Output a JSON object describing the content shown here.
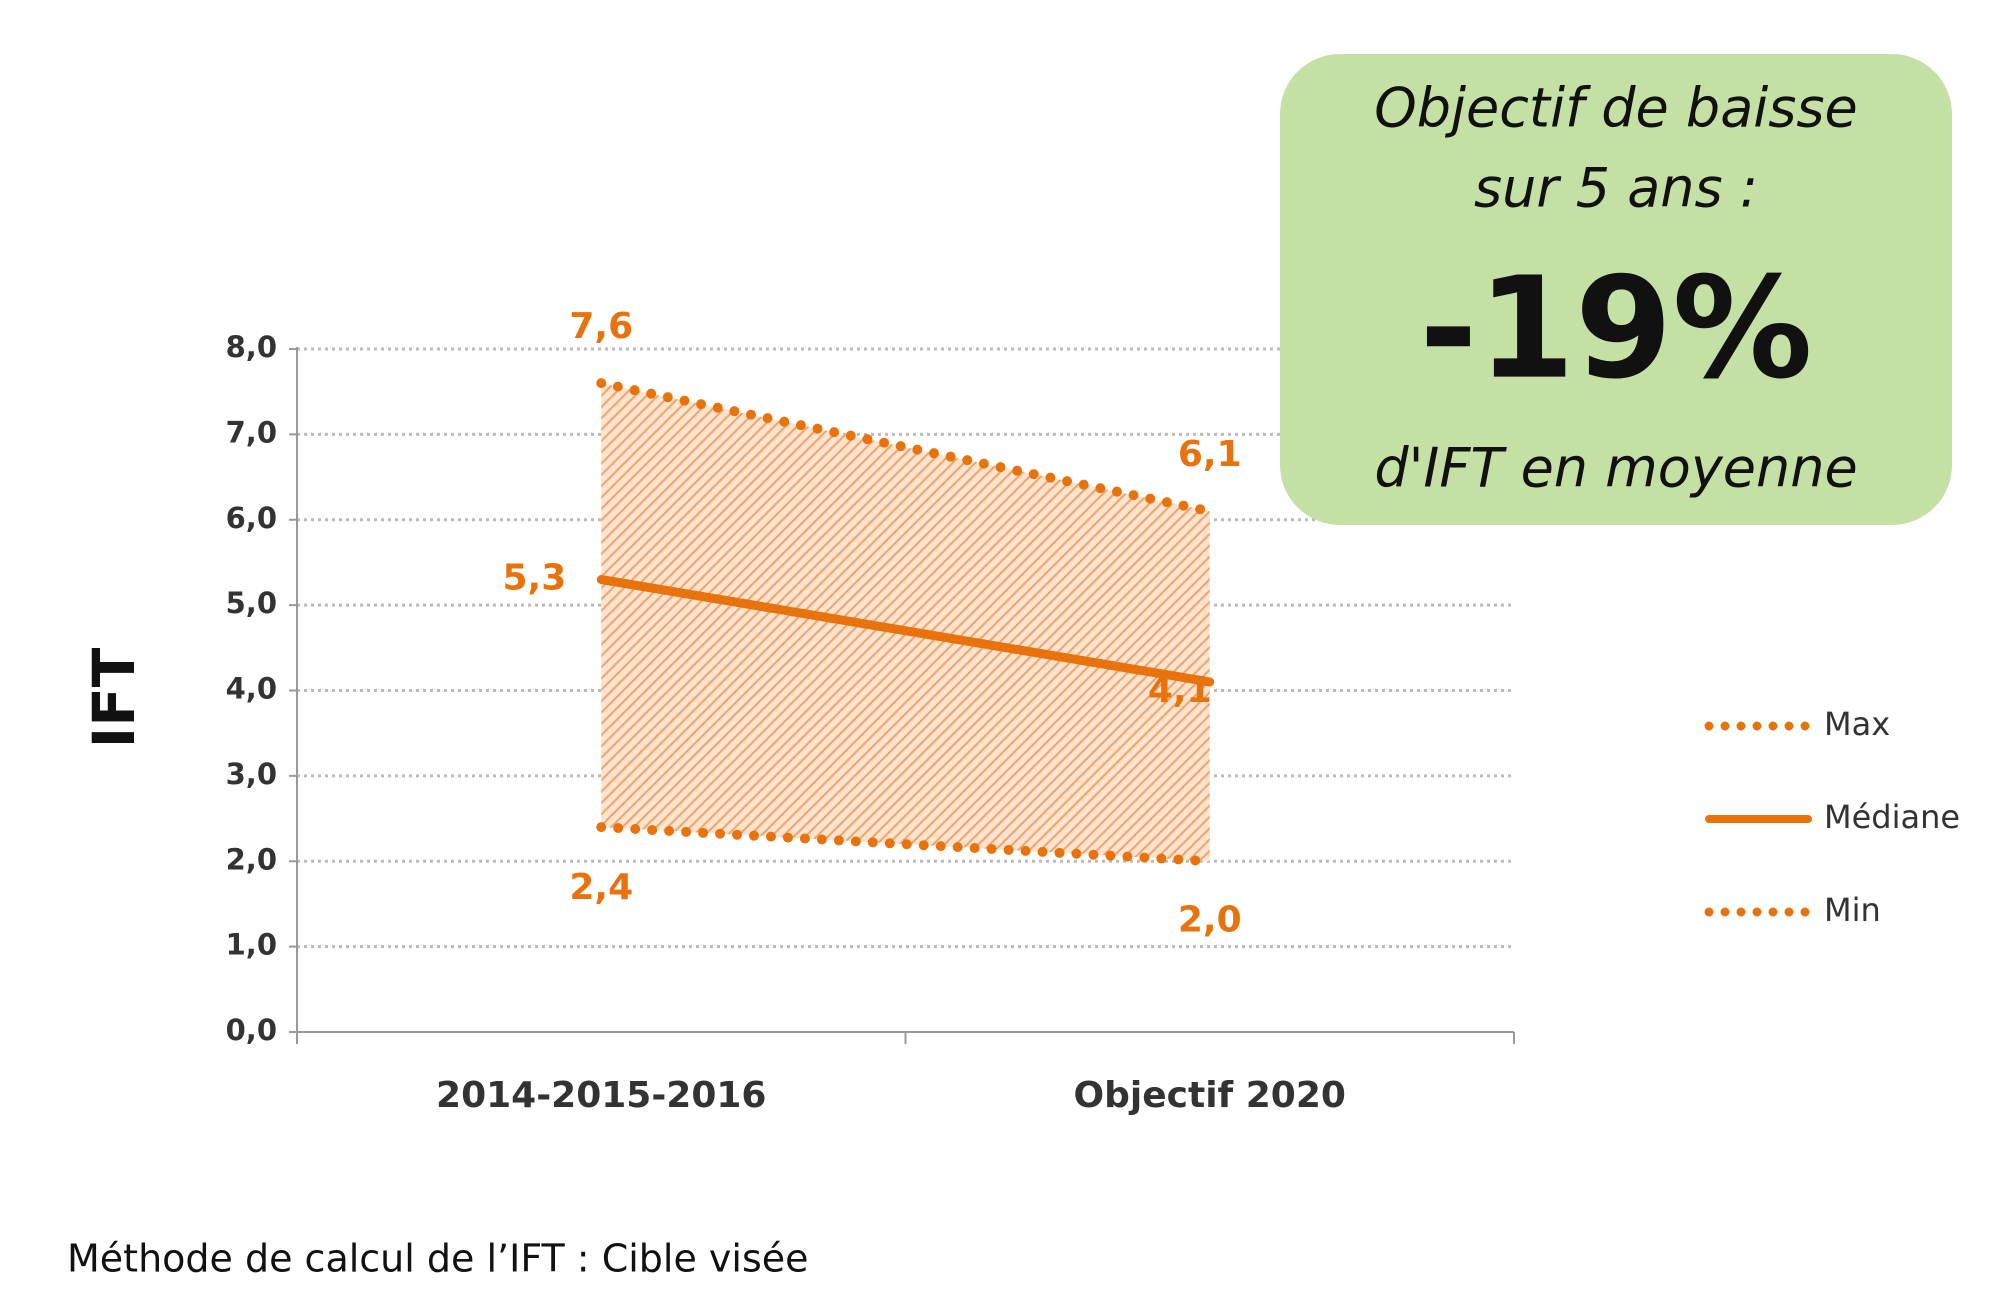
{
  "chart_data": {
    "type": "line",
    "y_label": "IFT",
    "categories": [
      "2014-2015-2016",
      "Objectif 2020"
    ],
    "series": [
      {
        "name": "Max",
        "color": "#e8720c",
        "style": "dotted",
        "values": [
          7.6,
          6.1
        ],
        "value_labels": [
          "7,6",
          "6,1"
        ]
      },
      {
        "name": "Médiane",
        "color": "#e8720c",
        "style": "solid",
        "values": [
          5.3,
          4.1
        ],
        "value_labels": [
          "5,3",
          "4,1"
        ]
      },
      {
        "name": "Min",
        "color": "#e8720c",
        "style": "dotted",
        "values": [
          2.4,
          2.0
        ],
        "value_labels": [
          "2,4",
          "2,0"
        ]
      }
    ],
    "ylim": [
      0,
      8
    ],
    "yticks": [
      {
        "value": 0,
        "label": "0,0"
      },
      {
        "value": 1,
        "label": "1,0"
      },
      {
        "value": 2,
        "label": "2,0"
      },
      {
        "value": 3,
        "label": "3,0"
      },
      {
        "value": 4,
        "label": "4,0"
      },
      {
        "value": 5,
        "label": "5,0"
      },
      {
        "value": 6,
        "label": "6,0"
      },
      {
        "value": 7,
        "label": "7,0"
      },
      {
        "value": 8,
        "label": "8,0"
      }
    ],
    "grid": true,
    "annotation": {
      "line1": "Objectif de baisse",
      "line2": "sur 5 ans :",
      "headline": "-19%",
      "line3": "d'IFT en moyenne"
    },
    "footnote": "Méthode de calcul de l’IFT : Cible visée"
  }
}
